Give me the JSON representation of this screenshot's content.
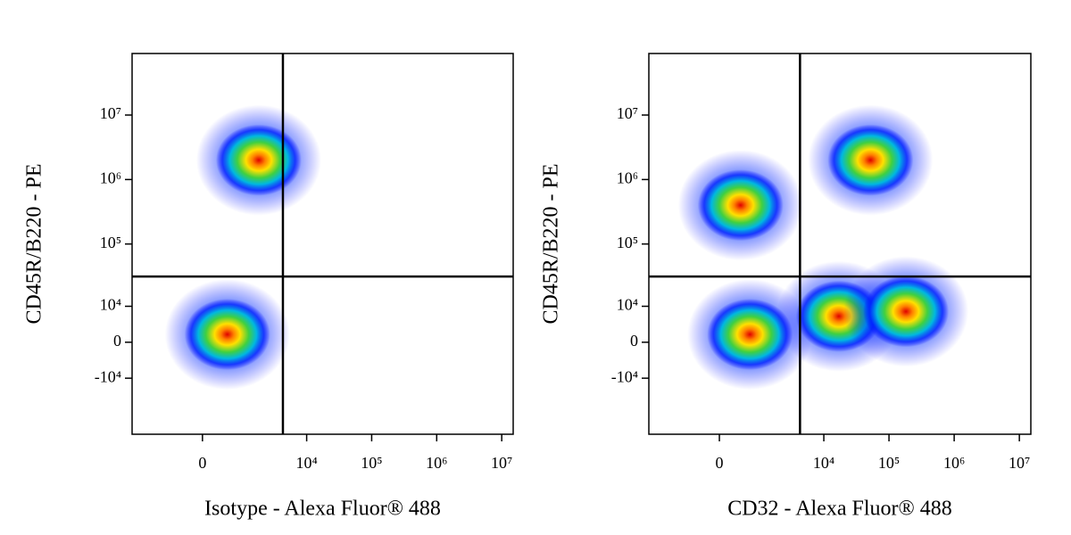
{
  "chart_data": [
    {
      "type": "scatter",
      "x_label": "Isotype - Alexa Fluor® 488",
      "y_label": "CD45R/B220 - PE",
      "scale": "biexponential",
      "xlim": [
        -3000,
        15000000
      ],
      "ylim": [
        -80000,
        90000000
      ],
      "xticks": [
        0,
        {
          "value": 10000,
          "label": "10⁴"
        },
        {
          "value": 100000,
          "label": "10⁵"
        },
        {
          "value": 1000000,
          "label": "10⁶"
        },
        {
          "value": 10000000,
          "label": "10⁷"
        }
      ],
      "yticks": [
        {
          "value": -10000,
          "label": "-10⁴"
        },
        0,
        {
          "value": 10000,
          "label": "10⁴"
        },
        {
          "value": 100000,
          "label": "10⁵"
        },
        {
          "value": 1000000,
          "label": "10⁶"
        },
        {
          "value": 10000000,
          "label": "10⁷"
        }
      ],
      "gates": {
        "x": 4300,
        "y": 31000
      },
      "populations": {
        "x": [
          500,
          1800
        ],
        "y": [
          1700,
          2000000
        ]
      }
    },
    {
      "type": "scatter",
      "x_label": "CD32 - Alexa Fluor® 488",
      "y_label": "CD45R/B220 - PE",
      "scale": "biexponential",
      "xlim": [
        -3000,
        15000000
      ],
      "ylim": [
        -80000,
        90000000
      ],
      "xticks": [
        0,
        {
          "value": 10000,
          "label": "10⁴"
        },
        {
          "value": 100000,
          "label": "10⁵"
        },
        {
          "value": 1000000,
          "label": "10⁶"
        },
        {
          "value": 10000000,
          "label": "10⁷"
        }
      ],
      "yticks": [
        {
          "value": -10000,
          "label": "-10⁴"
        },
        0,
        {
          "value": 10000,
          "label": "10⁴"
        },
        {
          "value": 100000,
          "label": "10⁵"
        },
        {
          "value": 1000000,
          "label": "10⁶"
        },
        {
          "value": 10000000,
          "label": "10⁷"
        }
      ],
      "gates": {
        "x": 4300,
        "y": 31000
      },
      "populations": {
        "x": [
          650,
          52000,
          17000,
          182000,
          410
        ],
        "y": [
          1700,
          2000000,
          6400,
          8000,
          400000
        ]
      }
    }
  ]
}
